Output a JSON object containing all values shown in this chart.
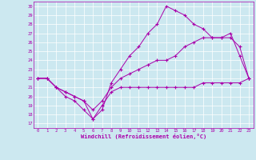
{
  "xlabel": "Windchill (Refroidissement éolien,°C)",
  "bg_color": "#cce8f0",
  "line_color": "#aa00aa",
  "xlim": [
    -0.5,
    23.5
  ],
  "ylim": [
    16.5,
    30.5
  ],
  "yticks": [
    17,
    18,
    19,
    20,
    21,
    22,
    23,
    24,
    25,
    26,
    27,
    28,
    29,
    30
  ],
  "xticks": [
    0,
    1,
    2,
    3,
    4,
    5,
    6,
    7,
    8,
    9,
    10,
    11,
    12,
    13,
    14,
    15,
    16,
    17,
    18,
    19,
    20,
    21,
    22,
    23
  ],
  "hours": [
    0,
    1,
    2,
    3,
    4,
    5,
    6,
    7,
    8,
    9,
    10,
    11,
    12,
    13,
    14,
    15,
    16,
    17,
    18,
    19,
    20,
    21,
    22,
    23
  ],
  "line1": [
    22,
    22,
    21,
    20,
    19.5,
    18.5,
    17.5,
    18.5,
    21.5,
    23.0,
    24.5,
    25.5,
    27.0,
    28.0,
    30.0,
    29.5,
    29.0,
    28.0,
    27.5,
    26.5,
    26.5,
    27.0,
    24.5,
    22.0
  ],
  "line2": [
    22,
    22,
    21,
    20.5,
    20,
    19.5,
    18.5,
    19.5,
    21.0,
    22.0,
    22.5,
    23.0,
    23.5,
    24.0,
    24.0,
    24.5,
    25.5,
    26.0,
    26.5,
    26.5,
    26.5,
    26.5,
    25.5,
    22.0
  ],
  "line3": [
    22,
    22,
    21,
    20.5,
    20,
    19.5,
    17.5,
    19.0,
    20.5,
    21.0,
    21.0,
    21.0,
    21.0,
    21.0,
    21.0,
    21.0,
    21.0,
    21.0,
    21.5,
    21.5,
    21.5,
    21.5,
    21.5,
    22.0
  ]
}
